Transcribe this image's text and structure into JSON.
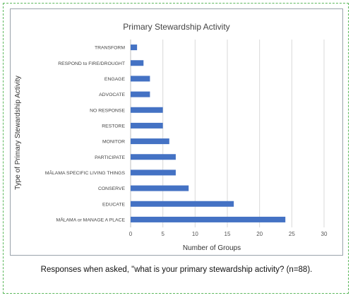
{
  "chart_data": {
    "type": "bar",
    "orientation": "horizontal",
    "title": "Primary Stewardship Activity",
    "xlabel": "Number of Groups",
    "ylabel": "Type of Primary Stewardship Activity",
    "categories": [
      "TRANSFORM",
      "RESPOND to FIRE/DROUGHT",
      "ENGAGE",
      "ADVOCATE",
      "NO RESPONSE",
      "RESTORE",
      "MONITOR",
      "PARTICIPATE",
      "MĀLAMA SPECIFIC LIVING THINGS",
      "CONSERVE",
      "EDUCATE",
      "MĀLAMA or MANAGE A PLACE"
    ],
    "values": [
      1,
      2,
      3,
      3,
      5,
      5,
      6,
      7,
      7,
      9,
      16,
      24
    ],
    "xlim": [
      0,
      30
    ],
    "xticks": [
      0,
      5,
      10,
      15,
      20,
      25,
      30
    ],
    "grid": true,
    "bar_color": "#4472c4"
  },
  "caption": "Responses when asked, \"what is your primary stewardship activity? (n=88)."
}
